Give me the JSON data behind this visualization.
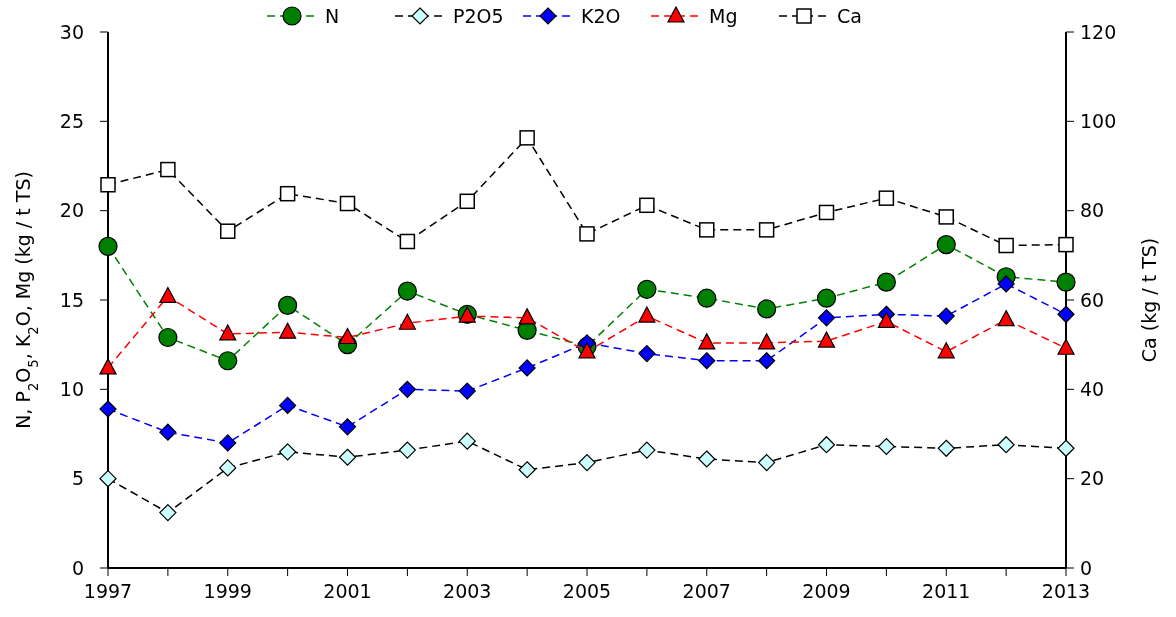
{
  "chart_data": {
    "type": "line",
    "ylabel": "N, P$_{2}$O$_{5}$, K$_{2}$O, Mg (kg / t TS)",
    "y2label": "Ca (kg / t TS)",
    "x": [
      1997,
      1998,
      1999,
      2000,
      2001,
      2002,
      2003,
      2004,
      2005,
      2006,
      2007,
      2008,
      2009,
      2010,
      2011,
      2012,
      2013
    ],
    "xlim": [
      1997,
      2013
    ],
    "xticks": [
      1997,
      {
        "value": 1998,
        "label": null
      },
      1999,
      {
        "value": 2000,
        "label": null
      },
      2001,
      {
        "value": 2002,
        "label": null
      },
      2003,
      {
        "value": 2004,
        "label": null
      },
      2005,
      {
        "value": 2006,
        "label": null
      },
      2007,
      {
        "value": 2008,
        "label": null
      },
      2009,
      {
        "value": 2010,
        "label": null
      },
      2011,
      {
        "value": 2012,
        "label": null
      },
      2013
    ],
    "ylim": [
      0,
      30
    ],
    "yticks": [
      0,
      5,
      10,
      15,
      20,
      25,
      30
    ],
    "y2lim": [
      0,
      120
    ],
    "y2ticks": [
      0,
      20,
      40,
      60,
      80,
      100,
      120
    ],
    "grid": false,
    "legend": "top",
    "line_style": "dashed",
    "series": [
      {
        "name": "N",
        "color": "#008000",
        "marker": "circle",
        "values": [
          18.0,
          12.9,
          11.6,
          14.7,
          12.5,
          15.5,
          14.2,
          13.3,
          12.4,
          15.6,
          15.1,
          14.5,
          15.1,
          16.0,
          18.1,
          16.3,
          16.0
        ]
      },
      {
        "name": "P2O5",
        "color": "#ccffff",
        "marker": "diamond",
        "values": [
          5.0,
          3.1,
          5.6,
          6.5,
          6.2,
          6.6,
          7.1,
          5.5,
          5.9,
          6.6,
          6.1,
          5.9,
          6.9,
          6.8,
          6.7,
          6.9,
          6.7
        ]
      },
      {
        "name": "K2O",
        "color": "#0000ff",
        "marker": "diamond",
        "values": [
          8.9,
          7.6,
          7.0,
          9.1,
          7.9,
          10.0,
          9.9,
          11.2,
          12.6,
          12.0,
          11.6,
          11.6,
          14.0,
          14.2,
          14.1,
          15.9,
          14.2
        ]
      },
      {
        "name": "Mg",
        "color": "#ff0000",
        "marker": "triangle",
        "values": [
          11.2,
          15.2,
          13.1,
          13.2,
          12.9,
          13.7,
          14.1,
          14.0,
          12.1,
          14.1,
          12.6,
          12.6,
          12.7,
          13.8,
          12.1,
          13.9,
          12.3
        ]
      },
      {
        "name": "Ca",
        "color": "#000000",
        "marker": "square",
        "axis": "y2",
        "values": [
          85.8,
          89.2,
          75.4,
          83.8,
          81.6,
          73.1,
          82.1,
          96.3,
          74.8,
          81.2,
          75.7,
          75.7,
          79.6,
          82.8,
          78.6,
          72.2,
          72.4
        ]
      }
    ]
  }
}
